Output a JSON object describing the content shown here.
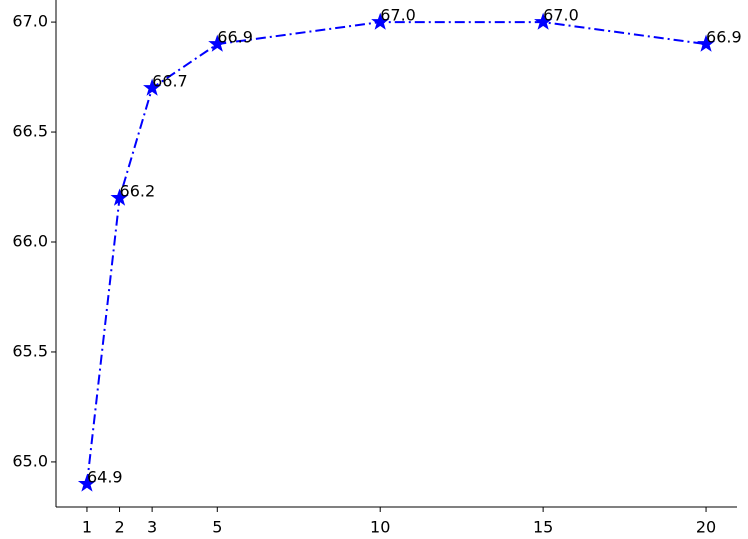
{
  "chart_data": {
    "type": "line",
    "x": [
      1,
      2,
      3,
      5,
      10,
      15,
      20
    ],
    "series": [
      {
        "color": "#0000ff",
        "values": [
          64.9,
          66.2,
          66.7,
          66.9,
          67.0,
          67.0,
          66.9
        ],
        "value_labels": [
          "64.9",
          "66.2",
          "66.7",
          "66.9",
          "67.0",
          "67.0",
          "66.9"
        ]
      }
    ],
    "xlim": [
      0.05,
      20.95
    ],
    "ylim": [
      64.795,
      67.105
    ],
    "xticks": [
      1,
      2,
      3,
      5,
      10,
      15,
      20
    ],
    "yticks": [
      {
        "value": 65,
        "label": "65.0"
      },
      65.5,
      {
        "value": 66,
        "label": "66.0"
      },
      66.5,
      {
        "value": 67,
        "label": "67.0"
      }
    ],
    "grid": false
  }
}
